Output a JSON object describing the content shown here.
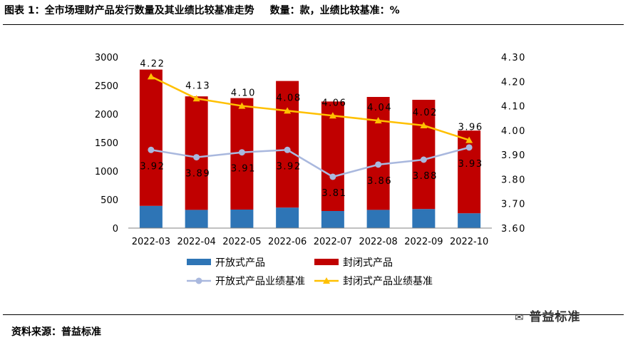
{
  "header": {
    "title": "图表 1：全市场理财产品发行数量及其业绩比较基准走势",
    "unit_note": "数量：款，业绩比较基准：%"
  },
  "footer": {
    "source": "资料来源：普益标准",
    "watermark": "普益标准"
  },
  "colors": {
    "open_bar": "#2e75b6",
    "closed_bar": "#c00000",
    "open_line": "#a9b8de",
    "closed_line": "#ffc000"
  },
  "chart_data": {
    "type": "bar",
    "stacked": true,
    "categories": [
      "2022-03",
      "2022-04",
      "2022-05",
      "2022-06",
      "2022-07",
      "2022-08",
      "2022-09",
      "2022-10"
    ],
    "series": [
      {
        "name": "开放式产品",
        "type": "bar",
        "axis": "left",
        "values": [
          390,
          320,
          325,
          360,
          300,
          320,
          335,
          260
        ]
      },
      {
        "name": "封闭式产品",
        "type": "bar",
        "axis": "left",
        "values": [
          2390,
          1990,
          1955,
          2220,
          1920,
          1980,
          1915,
          1450
        ]
      },
      {
        "name": "开放式产品业绩基准",
        "type": "line",
        "axis": "right",
        "values": [
          3.92,
          3.89,
          3.91,
          3.92,
          3.81,
          3.86,
          3.88,
          3.93
        ],
        "labels": [
          "3.92",
          "3.89",
          "3.91",
          "3.92",
          "3.81",
          "3.86",
          "3.88",
          "3.93"
        ]
      },
      {
        "name": "封闭式产品业绩基准",
        "type": "line",
        "axis": "right",
        "values": [
          4.22,
          4.13,
          4.1,
          4.08,
          4.06,
          4.04,
          4.02,
          3.96
        ],
        "labels": [
          "4.22",
          "4.13",
          "4.10",
          "4.08",
          "4.06",
          "4.04",
          "4.02",
          "3.96"
        ]
      }
    ],
    "y_left": {
      "min": 0,
      "max": 3000,
      "step": 500,
      "ticks": [
        "0",
        "500",
        "1000",
        "1500",
        "2000",
        "2500",
        "3000"
      ]
    },
    "y_right": {
      "min": 3.6,
      "max": 4.3,
      "step": 0.1,
      "ticks": [
        "3.60",
        "3.70",
        "3.80",
        "3.90",
        "4.00",
        "4.10",
        "4.20",
        "4.30"
      ]
    },
    "legend": [
      "开放式产品",
      "封闭式产品",
      "开放式产品业绩基准",
      "封闭式产品业绩基准"
    ],
    "legend_position": "bottom"
  }
}
